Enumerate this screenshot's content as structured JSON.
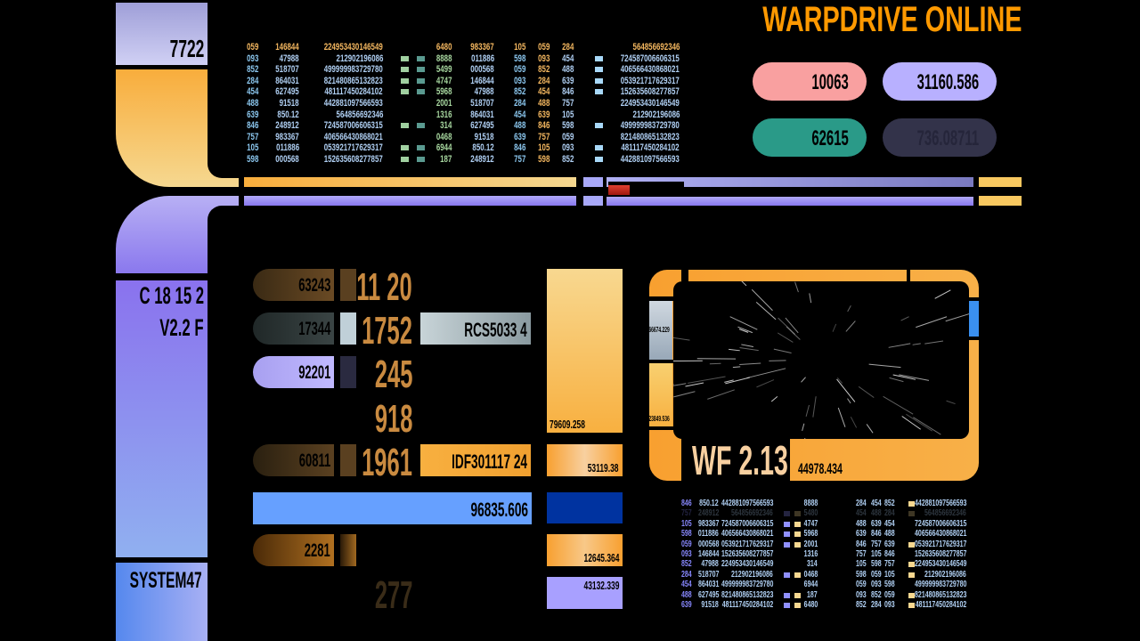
{
  "title": "WARPDRIVE ONLINE",
  "colors": {
    "orange": "#ff9900",
    "lavender": "#b8b0ff",
    "pink": "#f9a0a0",
    "teal": "#2a9a88",
    "blue": "#66a0ff",
    "darkblue": "#0033a0"
  },
  "sidebar": {
    "top_label": "7722",
    "code_line1": "C 18 15 2",
    "code_line2": "V2.2 F",
    "bottom_label": "SYSTEM47"
  },
  "pills": [
    {
      "value": "10063",
      "color": "#f9a0a0"
    },
    {
      "value": "31160.586",
      "color": "#b8b0ff"
    },
    {
      "value": "62615",
      "color": "#2a9a88"
    },
    {
      "value": "736.08711",
      "color": "#33334a"
    }
  ],
  "top_table": {
    "rows": [
      [
        "059",
        "146844",
        "224953430146549",
        0,
        "6480",
        "983367",
        "105",
        "059",
        "284",
        0,
        "564856692346"
      ],
      [
        "093",
        "47988",
        "212902196086",
        1,
        "8888",
        "011886",
        "598",
        "093",
        "454",
        1,
        "724587006606315"
      ],
      [
        "852",
        "518707",
        "499999983729780",
        1,
        "5499",
        "000568",
        "059",
        "852",
        "488",
        1,
        "406566430868021"
      ],
      [
        "284",
        "864031",
        "821480865132823",
        1,
        "4747",
        "146844",
        "093",
        "284",
        "639",
        1,
        "053921717629317"
      ],
      [
        "454",
        "627495",
        "481117450284102",
        1,
        "5968",
        "47988",
        "852",
        "454",
        "846",
        1,
        "152635608277857"
      ],
      [
        "488",
        "91518",
        "442881097566593",
        0,
        "2001",
        "518707",
        "284",
        "488",
        "757",
        0,
        "224953430146549"
      ],
      [
        "639",
        "850.12",
        "564856692346",
        0,
        "1316",
        "864031",
        "454",
        "639",
        "105",
        0,
        "212902196086"
      ],
      [
        "846",
        "248912",
        "724587006606315",
        1,
        "314",
        "627495",
        "488",
        "846",
        "598",
        1,
        "499999983729780"
      ],
      [
        "757",
        "983367",
        "406566430868021",
        0,
        "0468",
        "91518",
        "639",
        "757",
        "059",
        0,
        "821480865132823"
      ],
      [
        "105",
        "011886",
        "053921717629317",
        1,
        "6944",
        "850.12",
        "846",
        "105",
        "093",
        1,
        "481117450284102"
      ],
      [
        "598",
        "000568",
        "152635608277857",
        1,
        "187",
        "248912",
        "757",
        "598",
        "852",
        1,
        "442881097566593"
      ]
    ]
  },
  "bottom_table": {
    "rows": [
      [
        "846",
        "850.12",
        "442881097566593",
        0,
        "8888",
        "284",
        "454",
        "852",
        1,
        "442881097566593"
      ],
      [
        "757",
        "248912",
        "564856692346",
        1,
        "5480",
        "454",
        "488",
        "284",
        1,
        "564856692346"
      ],
      [
        "105",
        "983367",
        "724587006606315",
        1,
        "4747",
        "488",
        "639",
        "454",
        0,
        "724587006606315"
      ],
      [
        "598",
        "011886",
        "406566430868021",
        1,
        "5968",
        "639",
        "846",
        "488",
        0,
        "406566430868021"
      ],
      [
        "059",
        "000568",
        "053921717629317",
        1,
        "2001",
        "846",
        "757",
        "639",
        1,
        "053921717629317"
      ],
      [
        "093",
        "146844",
        "152635608277857",
        0,
        "1316",
        "757",
        "105",
        "846",
        0,
        "152635608277857"
      ],
      [
        "852",
        "47988",
        "224953430146549",
        0,
        "314",
        "105",
        "598",
        "757",
        1,
        "224953430146549"
      ],
      [
        "284",
        "518707",
        "212902196086",
        1,
        "0468",
        "598",
        "059",
        "105",
        1,
        "212902196086"
      ],
      [
        "454",
        "864031",
        "499999983729780",
        0,
        "6944",
        "059",
        "093",
        "598",
        0,
        "499999983729780"
      ],
      [
        "488",
        "627495",
        "821480865132823",
        1,
        "187",
        "093",
        "852",
        "059",
        1,
        "821480865132823"
      ],
      [
        "639",
        "91518",
        "481117450284102",
        1,
        "6480",
        "852",
        "284",
        "093",
        1,
        "481117450284102"
      ]
    ]
  },
  "panel": {
    "rows": [
      {
        "pill": "63243",
        "big": "11 20"
      },
      {
        "pill": "17344",
        "big": "1752",
        "tag": "RCS5033 4"
      },
      {
        "pill": "92201",
        "big": "245"
      },
      {
        "big": "918"
      },
      {
        "pill": "60811",
        "big": "1961",
        "tag": "IDF301117 24"
      },
      {
        "bar": "96835.606"
      },
      {
        "pill": "2281"
      },
      {
        "big": "277"
      }
    ],
    "side": [
      "79609.258",
      "53119.38",
      "12645.364",
      "43132.339"
    ]
  },
  "viewer": {
    "warp_factor": "WF 2.13",
    "readout": "44978.434",
    "side_top": "66674.229",
    "side_bottom": "23849.536"
  }
}
